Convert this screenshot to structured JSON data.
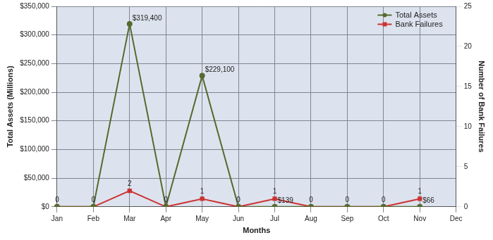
{
  "chart_data": {
    "type": "line",
    "x_label": "Months",
    "y_label": "Total Assets (Millions)",
    "y2_label": "Number of Bank Failures",
    "categories": [
      "Jan",
      "Feb",
      "Mar",
      "Apr",
      "May",
      "Jun",
      "Jul",
      "Aug",
      "Sep",
      "Oct",
      "Nov",
      "Dec"
    ],
    "series": [
      {
        "name": "Total Assets",
        "color": "#556b2f",
        "marker": "circle",
        "values": [
          0,
          0,
          319400,
          0,
          229100,
          0,
          139,
          0,
          0,
          0,
          66,
          null
        ],
        "value_labels": [
          null,
          null,
          "$319,400",
          null,
          "$229,100",
          null,
          "$139",
          null,
          null,
          null,
          "$66",
          null
        ]
      },
      {
        "name": "Bank Failures",
        "color": "#cc3333",
        "marker": "square",
        "axis": "y2",
        "values": [
          0,
          0,
          2,
          0,
          1,
          0,
          1,
          0,
          0,
          0,
          1,
          null
        ]
      }
    ],
    "ylim": [
      0,
      350000
    ],
    "yticks": [
      {
        "value": 0,
        "label": "$0"
      },
      {
        "value": 50000,
        "label": "$50,000"
      },
      {
        "value": 100000,
        "label": "$100,000"
      },
      {
        "value": 150000,
        "label": "$150,000"
      },
      {
        "value": 200000,
        "label": "$200,000"
      },
      {
        "value": 250000,
        "label": "$250,000"
      },
      {
        "value": 300000,
        "label": "$300,000"
      },
      {
        "value": 350000,
        "label": "$350,000"
      }
    ],
    "y2lim": [
      0,
      25
    ],
    "y2ticks": [
      0,
      5,
      10,
      15,
      20,
      25
    ],
    "grid": true,
    "legend": "top-right",
    "data_labels": true
  }
}
